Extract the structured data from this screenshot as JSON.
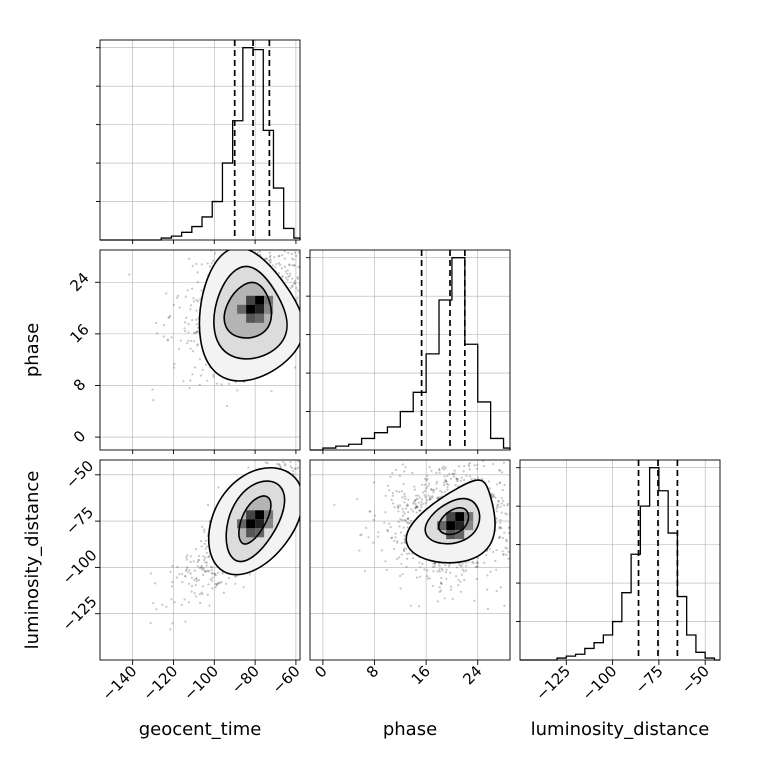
{
  "chart_data": {
    "type": "corner",
    "parameters": [
      "geocent_time",
      "phase",
      "luminosity_distance"
    ],
    "axis_labels": {
      "x": [
        "geocent_time",
        "phase",
        "luminosity_distance"
      ],
      "y": [
        "phase",
        "luminosity_distance"
      ]
    },
    "ranges": {
      "geocent_time": [
        -156,
        -58
      ],
      "phase": [
        -2,
        29
      ],
      "luminosity_distance": [
        -150,
        -42
      ]
    },
    "ticks": {
      "geocent_time": [
        -140,
        -120,
        -100,
        -80,
        -60
      ],
      "phase": [
        0,
        8,
        16,
        24
      ],
      "luminosity_distance_x": [
        -125,
        -100,
        -75,
        -50
      ],
      "luminosity_distance_y": [
        -125,
        -100,
        -75,
        -50
      ]
    },
    "tick_labels": {
      "geocent_time": [
        "−140",
        "−120",
        "−100",
        "−80",
        "−60"
      ],
      "phase": [
        "0",
        "8",
        "16",
        "24"
      ],
      "luminosity_distance_x": [
        "−125",
        "−100",
        "−75",
        "−50"
      ],
      "luminosity_distance_y": [
        "−125",
        "−100",
        "−75",
        "−50"
      ]
    },
    "histograms": {
      "geocent_time": {
        "edges": [
          -156,
          -151,
          -146,
          -141,
          -136,
          -131,
          -126,
          -121,
          -116,
          -111,
          -106,
          -101,
          -96,
          -91,
          -86,
          -81,
          -76,
          -71,
          -66,
          -61,
          -58
        ],
        "counts": [
          0,
          0,
          0,
          0,
          0,
          0,
          1,
          2,
          4,
          7,
          12,
          20,
          40,
          62,
          100,
          99,
          57,
          27,
          6,
          1
        ],
        "quantiles": [
          -90,
          -81,
          -73
        ]
      },
      "phase": {
        "edges": [
          -2,
          0,
          2,
          4,
          6,
          8,
          10,
          12,
          14,
          16,
          18,
          20,
          22,
          24,
          26,
          28,
          29
        ],
        "counts": [
          0,
          1,
          2,
          3,
          6,
          9,
          12,
          20,
          30,
          50,
          78,
          100,
          55,
          25,
          6,
          1
        ],
        "quantiles": [
          15.3,
          19.7,
          22
        ]
      },
      "luminosity_distance": {
        "edges": [
          -150,
          -145,
          -140,
          -135,
          -130,
          -125,
          -120,
          -115,
          -110,
          -105,
          -100,
          -95,
          -90,
          -85,
          -80,
          -75,
          -70,
          -65,
          -60,
          -55,
          -50,
          -45,
          -42
        ],
        "counts": [
          0,
          0,
          0,
          0,
          1,
          2,
          3,
          6,
          9,
          13,
          20,
          35,
          55,
          80,
          100,
          88,
          66,
          33,
          13,
          4,
          1,
          0
        ],
        "quantiles": [
          -86,
          -75.5,
          -65
        ]
      }
    },
    "density_2d": [
      {
        "x": "geocent_time",
        "y": "phase",
        "center": [
          -80,
          20.5
        ],
        "sd": [
          10,
          3.2
        ],
        "rho": 0.3,
        "contours": [
          [
            -73.5,
            21.5,
            -94.5,
            17.3,
            -77,
            16,
            -86,
            23.5
          ],
          [
            -70,
            22.5,
            -97.5,
            14.3,
            -69,
            14,
            -91,
            25.5
          ],
          [
            -65,
            23.5,
            -102,
            11,
            -62.5,
            12.5,
            -97,
            28
          ]
        ]
      },
      {
        "x": "geocent_time",
        "y": "luminosity_distance",
        "center": [
          -80,
          -74
        ],
        "sd": [
          10,
          12
        ],
        "rho": 0.85,
        "contours": [
          [
            -73,
            -63,
            -87,
            -86,
            -77,
            -80,
            -84,
            -68
          ],
          [
            -68,
            -56,
            -91,
            -95,
            -72,
            -83,
            -89,
            -64
          ],
          [
            -62,
            -50,
            -97,
            -101,
            -65,
            -87,
            -95,
            -60
          ]
        ]
      },
      {
        "x": "phase",
        "y": "luminosity_distance",
        "center": [
          20.5,
          -75
        ],
        "sd": [
          3.2,
          10
        ],
        "rho": 0.1,
        "contours": [
          [
            22.5,
            -71,
            18,
            -79,
            21,
            -81,
            20,
            -69
          ],
          [
            24,
            -68,
            16,
            -82,
            22,
            -85,
            19.5,
            -65
          ],
          [
            26,
            -62,
            13,
            -87,
            24,
            -94,
            21,
            -57
          ]
        ]
      }
    ],
    "grid": true,
    "colors": {
      "line": "#000000",
      "density": "#333333",
      "grid": "#b0b0b0"
    }
  }
}
